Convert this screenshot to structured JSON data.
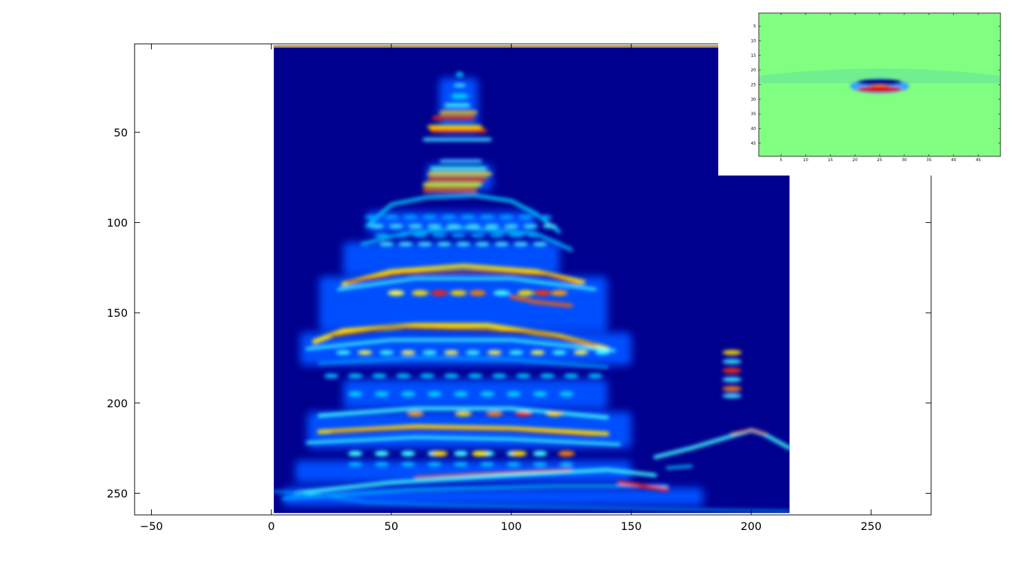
{
  "chart_data": [
    {
      "type": "heatmap",
      "title": "",
      "xlabel": "",
      "ylabel": "",
      "xlim": [
        -57,
        275
      ],
      "ylim": [
        262,
        1
      ],
      "image_extent": {
        "x": [
          1,
          216
        ],
        "y": [
          1,
          261
        ]
      },
      "colormap": "jet",
      "xticks": [
        -50,
        0,
        50,
        100,
        150,
        200,
        250
      ],
      "yticks": [
        50,
        100,
        150,
        200,
        250
      ],
      "grid": false,
      "colors": {
        "background": "#00008f",
        "low": "#0000aa",
        "high": "#800000"
      }
    },
    {
      "type": "heatmap",
      "title": "",
      "xlim": [
        0.5,
        49.5
      ],
      "ylim": [
        49.5,
        0.5
      ],
      "colormap": "jet",
      "xticks": [
        5,
        10,
        15,
        20,
        25,
        30,
        35,
        40,
        45
      ],
      "yticks": [
        5,
        10,
        15,
        20,
        25,
        30,
        35,
        40,
        45
      ],
      "grid": false,
      "colors": {
        "background": "#80ff80",
        "band": "#70ee90"
      }
    }
  ]
}
